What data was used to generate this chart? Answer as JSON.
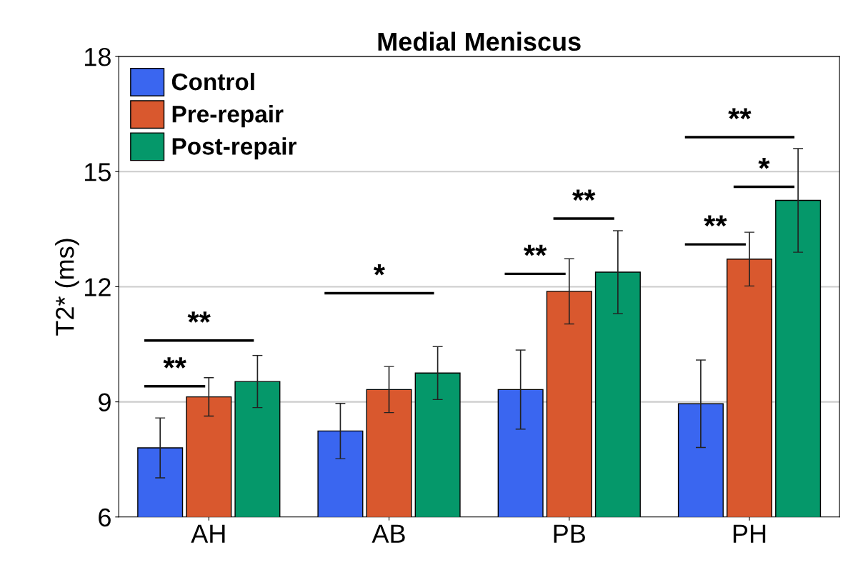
{
  "chart_data": {
    "type": "bar",
    "title": "Medial Meniscus",
    "ylabel": "T2* (ms)",
    "categories": [
      "AH",
      "AB",
      "PB",
      "PH"
    ],
    "series": [
      {
        "name": "Control",
        "color": "#3a66f0",
        "values": [
          7.8,
          8.24,
          9.32,
          8.95
        ],
        "errors": [
          0.78,
          0.72,
          1.03,
          1.14
        ]
      },
      {
        "name": "Pre-repair",
        "color": "#d9582e",
        "values": [
          9.13,
          9.32,
          11.88,
          12.72
        ],
        "errors": [
          0.5,
          0.6,
          0.85,
          0.7
        ]
      },
      {
        "name": "Post-repair",
        "color": "#05986a",
        "values": [
          9.53,
          9.75,
          12.38,
          14.25
        ],
        "errors": [
          0.68,
          0.69,
          1.08,
          1.35
        ]
      }
    ],
    "ylim": [
      6,
      18
    ],
    "yticks": [
      6,
      9,
      12,
      15,
      18
    ],
    "grid": "y",
    "legend": "top left",
    "annotations": [
      "**",
      "**",
      "*",
      "**",
      "**",
      "**",
      "*",
      "**"
    ]
  }
}
